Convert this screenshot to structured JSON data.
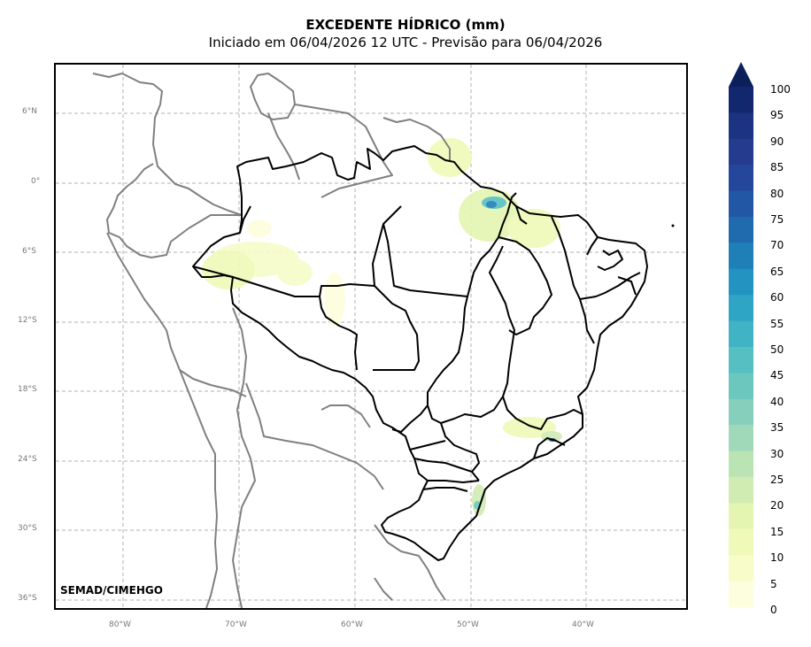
{
  "header": {
    "title": "EXCEDENTE HÍDRICO (mm)",
    "subtitle": "Iniciado em 06/04/2026 12 UTC - Previsão para 06/04/2026"
  },
  "credit": "SEMAD/CIMEHGO",
  "axes": {
    "lat_labels": [
      "6°N",
      "0°",
      "6°S",
      "12°S",
      "18°S",
      "24°S",
      "30°S",
      "36°S"
    ],
    "lon_labels": [
      "80°W",
      "70°W",
      "60°W",
      "50°W",
      "40°W"
    ]
  },
  "colorbar": {
    "labels": [
      "100",
      "95",
      "90",
      "85",
      "80",
      "75",
      "70",
      "65",
      "60",
      "55",
      "50",
      "45",
      "40",
      "35",
      "30",
      "25",
      "20",
      "15",
      "10",
      "5",
      "0"
    ],
    "colors": [
      "#0b1f5a",
      "#12286e",
      "#1b3380",
      "#243b8e",
      "#24479b",
      "#2257a5",
      "#1f6bae",
      "#1f80b8",
      "#2393c1",
      "#2ea5c5",
      "#40b4c4",
      "#55bfc2",
      "#6cc7bf",
      "#86cfbd",
      "#a0d9b9",
      "#bbe4b4",
      "#d1ecb3",
      "#e4f4b1",
      "#eff9b8",
      "#f7fcc9",
      "#fdfedd"
    ],
    "extend_color": "#0b1f5a"
  },
  "colors": {
    "grid": "#b0b0b0",
    "neighbor_border": "#808080",
    "state_border": "#000000",
    "frame": "#000000"
  }
}
